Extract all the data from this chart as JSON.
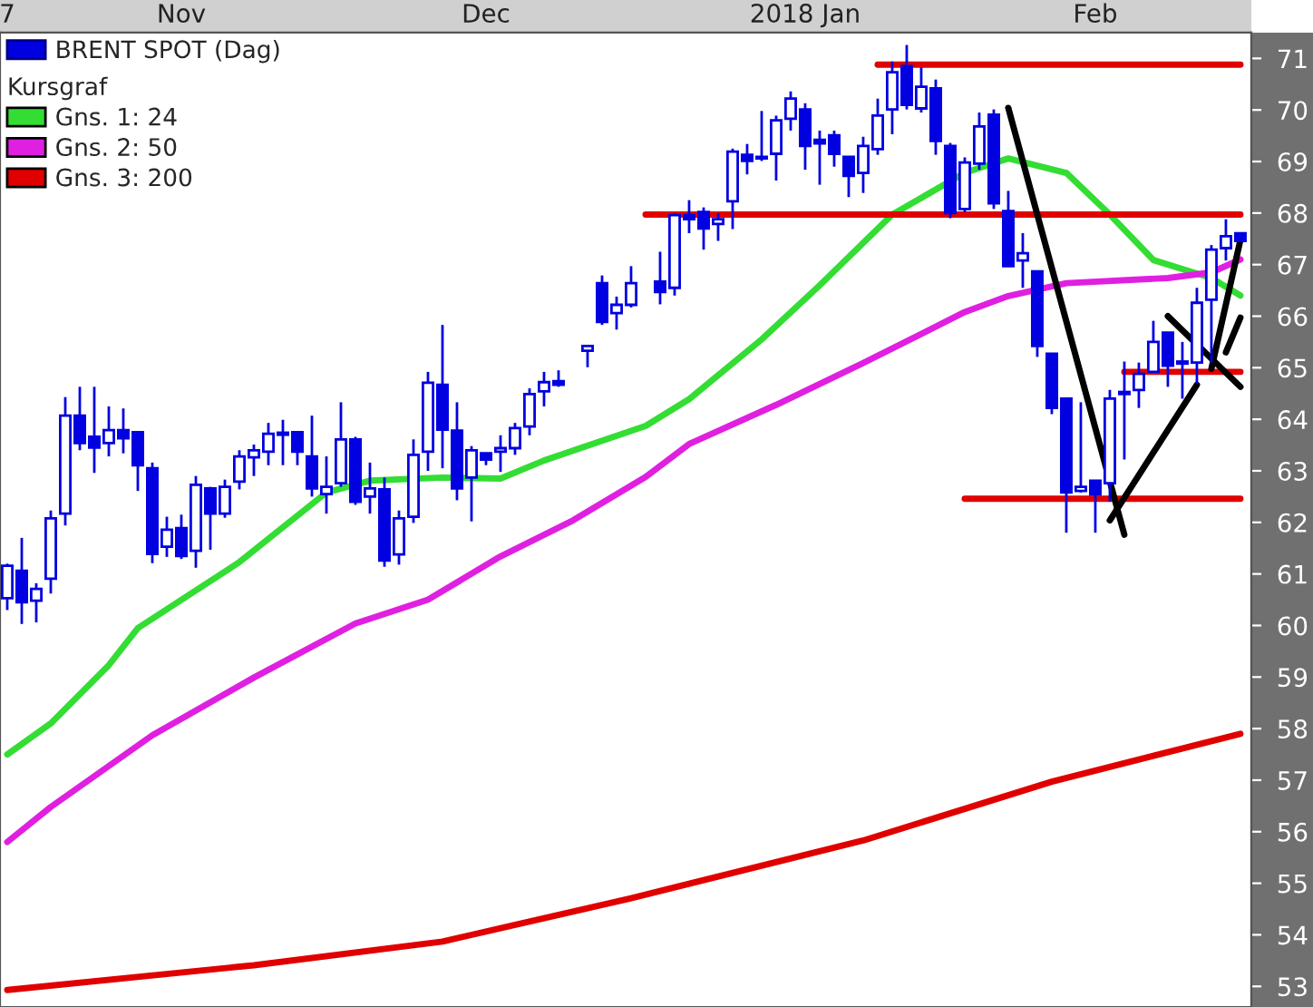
{
  "chart_data": {
    "type": "candlestick",
    "categories": [
      "7",
      null,
      null,
      null,
      null,
      null,
      null,
      null,
      null,
      null,
      null,
      null,
      "Nov",
      null,
      null,
      null,
      null,
      null,
      null,
      null,
      null,
      null,
      null,
      null,
      null,
      null,
      null,
      null,
      null,
      null,
      null,
      null,
      null,
      "Dec",
      null,
      null,
      null,
      null,
      null,
      null,
      null,
      null,
      null,
      null,
      null,
      null,
      null,
      null,
      null,
      null,
      null,
      null,
      null,
      null,
      null,
      "2018 Jan",
      null,
      null,
      null,
      null,
      null,
      null,
      null,
      null,
      null,
      null,
      null,
      null,
      null,
      null,
      null,
      null,
      null,
      null,
      null,
      "Feb",
      null,
      null,
      null,
      null,
      null,
      null,
      null,
      null,
      null,
      null
    ],
    "ylim": [
      52.6,
      71.5
    ],
    "yticks": [
      53,
      54,
      55,
      56,
      57,
      58,
      59,
      60,
      61,
      62,
      63,
      64,
      65,
      66,
      67,
      68,
      69,
      70,
      71
    ],
    "legend": "top left",
    "legend_title": "Kursgraf",
    "series": [
      {
        "name": "BRENT SPOT (Dag)",
        "color": "#0000e0",
        "ohlc": [
          [
            60.53,
            61.2,
            60.3,
            61.16
          ],
          [
            61.06,
            61.7,
            60.03,
            60.45
          ],
          [
            60.48,
            60.82,
            60.06,
            60.71
          ],
          [
            60.91,
            62.23,
            60.62,
            62.08
          ],
          [
            62.17,
            64.43,
            61.94,
            64.07
          ],
          [
            64.07,
            64.63,
            63.4,
            63.54
          ],
          [
            63.66,
            64.63,
            62.96,
            63.45
          ],
          [
            63.54,
            64.25,
            63.28,
            63.79
          ],
          [
            63.79,
            64.21,
            63.34,
            63.63
          ],
          [
            63.75,
            63.75,
            62.61,
            63.11
          ],
          [
            63.05,
            63.16,
            61.21,
            61.39
          ],
          [
            61.53,
            62.11,
            61.33,
            61.86
          ],
          [
            61.89,
            62.15,
            61.29,
            61.35
          ],
          [
            61.45,
            62.9,
            61.12,
            62.73
          ],
          [
            62.66,
            62.69,
            61.47,
            62.17
          ],
          [
            62.17,
            62.83,
            62.09,
            62.69
          ],
          [
            62.79,
            63.4,
            62.64,
            63.28
          ],
          [
            63.26,
            63.51,
            62.9,
            63.4
          ],
          [
            63.37,
            63.93,
            63.11,
            63.72
          ],
          [
            63.7,
            63.99,
            63.11,
            63.74
          ],
          [
            63.75,
            63.75,
            63.11,
            63.37
          ],
          [
            63.28,
            64.07,
            62.5,
            62.66
          ],
          [
            62.55,
            63.28,
            62.17,
            62.69
          ],
          [
            62.76,
            64.33,
            62.69,
            63.61
          ],
          [
            63.61,
            63.66,
            62.34,
            62.4
          ],
          [
            62.5,
            63.16,
            62.17,
            62.66
          ],
          [
            62.64,
            62.87,
            61.14,
            61.26
          ],
          [
            61.38,
            62.23,
            61.18,
            62.08
          ],
          [
            62.11,
            63.61,
            61.99,
            63.31
          ],
          [
            63.37,
            64.92,
            63.0,
            64.71
          ],
          [
            64.67,
            65.83,
            63.05,
            63.8
          ],
          [
            63.78,
            64.33,
            62.43,
            62.66
          ],
          [
            62.87,
            63.48,
            62.02,
            63.4
          ],
          [
            63.34,
            63.34,
            63.11,
            63.22
          ],
          [
            63.37,
            63.69,
            62.98,
            63.44
          ],
          [
            63.44,
            63.93,
            63.31,
            63.83
          ],
          [
            63.86,
            64.6,
            63.69,
            64.49
          ],
          [
            64.54,
            64.92,
            64.25,
            64.72
          ],
          [
            64.74,
            64.95,
            64.63,
            64.67
          ],
          null,
          [
            65.33,
            65.42,
            65.01,
            65.42
          ],
          [
            66.64,
            66.79,
            65.83,
            65.89
          ],
          [
            66.06,
            66.38,
            65.74,
            66.22
          ],
          [
            66.22,
            66.97,
            66.17,
            66.64
          ],
          null,
          [
            66.67,
            67.25,
            66.23,
            66.47
          ],
          [
            66.55,
            68.0,
            66.4,
            67.96
          ],
          [
            67.96,
            68.25,
            67.61,
            67.88
          ],
          [
            68.02,
            68.11,
            67.29,
            67.7
          ],
          [
            67.79,
            68.0,
            67.46,
            67.88
          ],
          [
            68.23,
            69.25,
            67.69,
            69.19
          ],
          [
            69.13,
            69.34,
            68.75,
            69.01
          ],
          [
            69.06,
            69.98,
            69.01,
            69.09
          ],
          [
            69.15,
            69.89,
            68.63,
            69.8
          ],
          [
            69.83,
            70.36,
            69.6,
            70.22
          ],
          [
            70.01,
            70.13,
            68.84,
            69.3
          ],
          [
            69.42,
            69.6,
            68.55,
            69.35
          ],
          [
            69.51,
            69.6,
            68.9,
            69.15
          ],
          [
            69.09,
            69.09,
            68.31,
            68.72
          ],
          [
            68.78,
            69.48,
            68.39,
            69.3
          ],
          [
            69.24,
            70.22,
            69.13,
            69.89
          ],
          [
            70.01,
            70.94,
            69.53,
            70.73
          ],
          [
            70.85,
            71.26,
            70.01,
            70.1
          ],
          [
            70.03,
            70.83,
            69.95,
            70.45
          ],
          [
            70.42,
            70.59,
            69.13,
            69.4
          ],
          [
            69.3,
            69.36,
            67.9,
            68.0
          ],
          [
            68.08,
            69.08,
            68.02,
            68.98
          ],
          [
            68.96,
            69.95,
            68.84,
            69.68
          ],
          [
            69.91,
            70.01,
            68.08,
            68.19
          ],
          [
            68.04,
            68.43,
            66.97,
            66.97
          ],
          [
            67.08,
            67.61,
            66.55,
            67.22
          ],
          [
            66.87,
            66.87,
            65.21,
            65.42
          ],
          [
            65.27,
            65.27,
            64.1,
            64.22
          ],
          [
            64.4,
            64.4,
            61.8,
            62.58
          ],
          [
            62.61,
            64.33,
            62.58,
            62.69
          ],
          [
            62.81,
            62.81,
            61.8,
            62.54
          ],
          [
            62.76,
            64.57,
            62.4,
            64.4
          ],
          [
            64.49,
            65.12,
            63.22,
            64.53
          ],
          [
            64.57,
            65.1,
            64.22,
            64.88
          ],
          [
            64.92,
            65.91,
            64.92,
            65.5
          ],
          [
            65.68,
            65.68,
            64.63,
            65.04
          ],
          [
            65.12,
            65.5,
            64.4,
            65.08
          ],
          [
            65.1,
            66.55,
            64.69,
            66.26
          ],
          [
            66.32,
            67.38,
            65.1,
            67.29
          ],
          [
            67.32,
            67.88,
            67.08,
            67.55
          ],
          [
            67.61,
            67.61,
            67.46,
            67.46
          ]
        ]
      },
      {
        "name": "Gns. 1: 24",
        "type": "line",
        "color": "#33dd33",
        "values": [
          57.5,
          null,
          null,
          58.1,
          null,
          null,
          null,
          59.23,
          null,
          59.95,
          null,
          null,
          null,
          null,
          null,
          null,
          61.23,
          null,
          null,
          null,
          null,
          null,
          62.58,
          null,
          null,
          62.81,
          null,
          null,
          null,
          null,
          62.87,
          null,
          null,
          null,
          62.85,
          null,
          null,
          63.2,
          null,
          null,
          null,
          null,
          null,
          null,
          63.87,
          null,
          null,
          64.39,
          null,
          null,
          null,
          null,
          65.55,
          null,
          null,
          null,
          66.6,
          null,
          null,
          null,
          null,
          67.97,
          null,
          null,
          null,
          null,
          68.78,
          null,
          null,
          69.06,
          null,
          null,
          null,
          68.78,
          null,
          null,
          67.97,
          null,
          null,
          67.09,
          null,
          null,
          null,
          66.74,
          null,
          66.4
        ]
      },
      {
        "name": "Gns. 2: 50",
        "type": "line",
        "color": "#e020e0",
        "values": [
          55.8,
          null,
          null,
          56.48,
          null,
          null,
          null,
          null,
          null,
          null,
          57.87,
          null,
          null,
          null,
          null,
          null,
          null,
          58.99,
          null,
          null,
          null,
          null,
          null,
          null,
          60.04,
          null,
          null,
          null,
          null,
          60.5,
          null,
          null,
          null,
          null,
          61.34,
          null,
          null,
          null,
          null,
          62.04,
          null,
          null,
          null,
          null,
          62.88,
          null,
          null,
          63.52,
          null,
          null,
          null,
          null,
          null,
          64.28,
          null,
          null,
          null,
          null,
          null,
          65.09,
          null,
          null,
          null,
          null,
          null,
          null,
          66.08,
          null,
          null,
          66.39,
          null,
          null,
          null,
          66.64,
          null,
          null,
          null,
          null,
          null,
          null,
          66.74,
          null,
          null,
          66.85,
          null,
          67.1
        ]
      },
      {
        "name": "Gns. 3: 200",
        "type": "line",
        "color": "#e00000",
        "values": [
          52.93,
          null,
          null,
          null,
          null,
          null,
          null,
          null,
          null,
          null,
          null,
          null,
          null,
          null,
          null,
          null,
          null,
          53.41,
          null,
          null,
          null,
          null,
          null,
          null,
          null,
          null,
          null,
          null,
          null,
          null,
          53.87,
          null,
          null,
          null,
          null,
          null,
          null,
          null,
          null,
          null,
          null,
          null,
          null,
          54.71,
          null,
          null,
          null,
          null,
          null,
          null,
          null,
          null,
          null,
          null,
          null,
          null,
          null,
          null,
          null,
          55.83,
          null,
          null,
          null,
          null,
          null,
          null,
          null,
          null,
          null,
          null,
          null,
          null,
          56.97,
          null,
          null,
          null,
          null,
          null,
          null,
          null,
          null,
          null,
          null,
          null,
          null,
          57.9
        ]
      },
      {
        "type": "line",
        "color": "#e00000",
        "values": [
          null,
          null,
          null,
          null,
          null,
          null,
          null,
          null,
          null,
          null,
          null,
          null,
          null,
          null,
          null,
          null,
          null,
          null,
          null,
          null,
          null,
          null,
          null,
          null,
          null,
          null,
          null,
          null,
          null,
          null,
          null,
          null,
          null,
          null,
          null,
          null,
          null,
          null,
          null,
          null,
          null,
          null,
          null,
          null,
          null,
          null,
          null,
          null,
          null,
          null,
          null,
          null,
          null,
          null,
          null,
          null,
          null,
          null,
          null,
          null,
          70.88,
          null,
          null,
          null,
          null,
          null,
          null,
          null,
          null,
          null,
          null,
          null,
          null,
          null,
          null,
          null,
          null,
          null,
          null,
          null,
          null,
          null,
          null,
          null,
          null,
          70.88
        ]
      },
      {
        "type": "line",
        "color": "#e00000",
        "values": [
          null,
          null,
          null,
          null,
          null,
          null,
          null,
          null,
          null,
          null,
          null,
          null,
          null,
          null,
          null,
          null,
          null,
          null,
          null,
          null,
          null,
          null,
          null,
          null,
          null,
          null,
          null,
          null,
          null,
          null,
          null,
          null,
          null,
          null,
          null,
          null,
          null,
          null,
          null,
          null,
          null,
          null,
          null,
          null,
          67.97,
          null,
          null,
          null,
          null,
          null,
          null,
          null,
          null,
          null,
          null,
          null,
          null,
          null,
          null,
          null,
          null,
          null,
          null,
          null,
          null,
          null,
          null,
          null,
          null,
          null,
          null,
          null,
          null,
          null,
          null,
          null,
          null,
          null,
          null,
          null,
          null,
          null,
          null,
          null,
          null,
          67.97
        ]
      },
      {
        "type": "line",
        "color": "#e00000",
        "values": [
          null,
          null,
          null,
          null,
          null,
          null,
          null,
          null,
          null,
          null,
          null,
          null,
          null,
          null,
          null,
          null,
          null,
          null,
          null,
          null,
          null,
          null,
          null,
          null,
          null,
          null,
          null,
          null,
          null,
          null,
          null,
          null,
          null,
          null,
          null,
          null,
          null,
          null,
          null,
          null,
          null,
          null,
          null,
          null,
          null,
          null,
          null,
          null,
          null,
          null,
          null,
          null,
          null,
          null,
          null,
          null,
          null,
          null,
          null,
          null,
          null,
          null,
          null,
          null,
          null,
          null,
          null,
          null,
          null,
          null,
          null,
          null,
          null,
          null,
          null,
          null,
          null,
          64.92,
          null,
          null,
          null,
          null,
          null,
          null,
          null,
          64.92
        ]
      },
      {
        "type": "line",
        "color": "#e00000",
        "values": [
          null,
          null,
          null,
          null,
          null,
          null,
          null,
          null,
          null,
          null,
          null,
          null,
          null,
          null,
          null,
          null,
          null,
          null,
          null,
          null,
          null,
          null,
          null,
          null,
          null,
          null,
          null,
          null,
          null,
          null,
          null,
          null,
          null,
          null,
          null,
          null,
          null,
          null,
          null,
          null,
          null,
          null,
          null,
          null,
          null,
          null,
          null,
          null,
          null,
          null,
          null,
          null,
          null,
          null,
          null,
          null,
          null,
          null,
          null,
          null,
          null,
          null,
          null,
          null,
          null,
          null,
          62.46,
          null,
          null,
          null,
          null,
          null,
          null,
          null,
          null,
          null,
          null,
          null,
          null,
          null,
          null,
          null,
          null,
          null,
          null,
          62.46
        ]
      },
      {
        "type": "line",
        "color": "#000000",
        "values": [
          null,
          null,
          null,
          null,
          null,
          null,
          null,
          null,
          null,
          null,
          null,
          null,
          null,
          null,
          null,
          null,
          null,
          null,
          null,
          null,
          null,
          null,
          null,
          null,
          null,
          null,
          null,
          null,
          null,
          null,
          null,
          null,
          null,
          null,
          null,
          null,
          null,
          null,
          null,
          null,
          null,
          null,
          null,
          null,
          null,
          null,
          null,
          null,
          null,
          null,
          null,
          null,
          null,
          null,
          null,
          null,
          null,
          null,
          null,
          null,
          null,
          null,
          null,
          null,
          null,
          null,
          null,
          null,
          null,
          70.04,
          null,
          null,
          null,
          null,
          null,
          null,
          null,
          61.76,
          null,
          null,
          null,
          null,
          null,
          null,
          null,
          null
        ]
      },
      {
        "type": "line",
        "color": "#000000",
        "values": [
          null,
          null,
          null,
          null,
          null,
          null,
          null,
          null,
          null,
          null,
          null,
          null,
          null,
          null,
          null,
          null,
          null,
          null,
          null,
          null,
          null,
          null,
          null,
          null,
          null,
          null,
          null,
          null,
          null,
          null,
          null,
          null,
          null,
          null,
          null,
          null,
          null,
          null,
          null,
          null,
          null,
          null,
          null,
          null,
          null,
          null,
          null,
          null,
          null,
          null,
          null,
          null,
          null,
          null,
          null,
          null,
          null,
          null,
          null,
          null,
          null,
          null,
          null,
          null,
          null,
          null,
          null,
          null,
          null,
          null,
          null,
          null,
          null,
          null,
          null,
          null,
          62.04,
          null,
          null,
          null,
          null,
          null,
          64.67,
          null,
          null,
          null
        ]
      },
      {
        "type": "line",
        "color": "#000000",
        "values": [
          null,
          null,
          null,
          null,
          null,
          null,
          null,
          null,
          null,
          null,
          null,
          null,
          null,
          null,
          null,
          null,
          null,
          null,
          null,
          null,
          null,
          null,
          null,
          null,
          null,
          null,
          null,
          null,
          null,
          null,
          null,
          null,
          null,
          null,
          null,
          null,
          null,
          null,
          null,
          null,
          null,
          null,
          null,
          null,
          null,
          null,
          null,
          null,
          null,
          null,
          null,
          null,
          null,
          null,
          null,
          null,
          null,
          null,
          null,
          null,
          null,
          null,
          null,
          null,
          null,
          null,
          null,
          null,
          null,
          null,
          null,
          null,
          null,
          null,
          null,
          null,
          null,
          null,
          null,
          null,
          66.0,
          null,
          null,
          null,
          null,
          64.63
        ]
      },
      {
        "type": "line",
        "color": "#000000",
        "values": [
          null,
          null,
          null,
          null,
          null,
          null,
          null,
          null,
          null,
          null,
          null,
          null,
          null,
          null,
          null,
          null,
          null,
          null,
          null,
          null,
          null,
          null,
          null,
          null,
          null,
          null,
          null,
          null,
          null,
          null,
          null,
          null,
          null,
          null,
          null,
          null,
          null,
          null,
          null,
          null,
          null,
          null,
          null,
          null,
          null,
          null,
          null,
          null,
          null,
          null,
          null,
          null,
          null,
          null,
          null,
          null,
          null,
          null,
          null,
          null,
          null,
          null,
          null,
          null,
          null,
          null,
          null,
          null,
          null,
          null,
          null,
          null,
          null,
          null,
          null,
          null,
          null,
          null,
          null,
          null,
          null,
          null,
          null,
          64.98,
          null,
          67.48
        ]
      },
      {
        "type": "line",
        "color": "#000000",
        "values": [
          null,
          null,
          null,
          null,
          null,
          null,
          null,
          null,
          null,
          null,
          null,
          null,
          null,
          null,
          null,
          null,
          null,
          null,
          null,
          null,
          null,
          null,
          null,
          null,
          null,
          null,
          null,
          null,
          null,
          null,
          null,
          null,
          null,
          null,
          null,
          null,
          null,
          null,
          null,
          null,
          null,
          null,
          null,
          null,
          null,
          null,
          null,
          null,
          null,
          null,
          null,
          null,
          null,
          null,
          null,
          null,
          null,
          null,
          null,
          null,
          null,
          null,
          null,
          null,
          null,
          null,
          null,
          null,
          null,
          null,
          null,
          null,
          null,
          null,
          null,
          null,
          null,
          null,
          null,
          null,
          null,
          null,
          null,
          null,
          65.3,
          65.97
        ]
      }
    ]
  }
}
